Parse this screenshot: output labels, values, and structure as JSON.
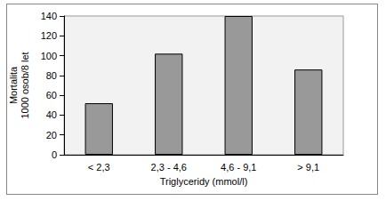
{
  "chart_data": {
    "type": "bar",
    "xlabel": "Triglyceridy (mmol/l)",
    "ylabel": "Mortalita\n1000 osob/8 let",
    "categories": [
      "< 2,3",
      "2,3 - 4,6",
      "4,6 - 9,1",
      "> 9,1"
    ],
    "values": [
      52,
      102,
      140,
      86
    ],
    "color": "#999999",
    "ylim": [
      0,
      140
    ],
    "yticks": [
      0,
      20,
      40,
      60,
      80,
      100,
      120,
      140
    ],
    "grid": false
  }
}
